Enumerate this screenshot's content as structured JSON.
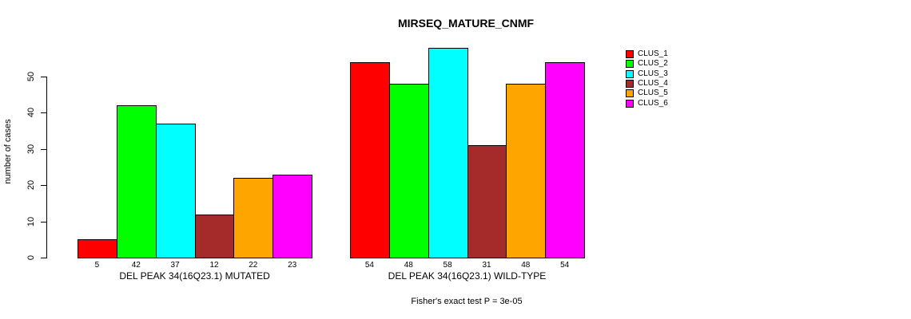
{
  "chart_data": {
    "type": "bar",
    "title": "MIRSEQ_MATURE_CNMF",
    "xlabel": "",
    "ylabel": "number of cases",
    "ylim": [
      0,
      58
    ],
    "yticks": [
      0,
      10,
      20,
      30,
      40,
      50
    ],
    "grid": false,
    "legend_position": "right-outside",
    "series": [
      {
        "name": "CLUS_1",
        "color": "#FF0000"
      },
      {
        "name": "CLUS_2",
        "color": "#00FF00"
      },
      {
        "name": "CLUS_3",
        "color": "#00FFFF"
      },
      {
        "name": "CLUS_4",
        "color": "#A52A2A"
      },
      {
        "name": "CLUS_5",
        "color": "#FFA500"
      },
      {
        "name": "CLUS_6",
        "color": "#FF00FF"
      }
    ],
    "groups": [
      {
        "label": "DEL PEAK 34(16Q23.1) MUTATED",
        "values": [
          5,
          42,
          37,
          12,
          22,
          23
        ]
      },
      {
        "label": "DEL PEAK 34(16Q23.1) WILD-TYPE",
        "values": [
          54,
          48,
          58,
          31,
          48,
          54
        ]
      }
    ],
    "bar_value_labels_shown": true,
    "annotation": "Fisher's exact test P = 3e-05"
  }
}
